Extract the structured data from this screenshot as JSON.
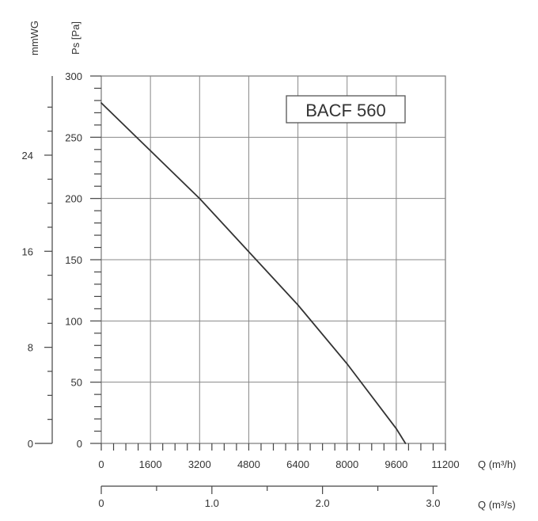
{
  "chart_data": {
    "type": "line",
    "title": "BACF 560",
    "y_label_primary": "Ps [Pa]",
    "y_label_secondary": "mmWG",
    "x_label_primary": "Q (m³/h)",
    "x_label_secondary": "Q (m³/s)",
    "xlim": [
      0,
      11200
    ],
    "ylim": [
      0,
      300
    ],
    "grid": true,
    "x_ticks": [
      "0",
      "1600",
      "3200",
      "4800",
      "6400",
      "8000",
      "9600",
      "11200"
    ],
    "y_ticks": [
      "0",
      "50",
      "100",
      "150",
      "200",
      "250",
      "300"
    ],
    "y_ticks_secondary": [
      "0",
      "8",
      "16",
      "24"
    ],
    "x_ticks_secondary": [
      "0",
      "1.0",
      "2.0",
      "3.0"
    ],
    "series": [
      {
        "x": [
          0,
          3200,
          6400,
          8000,
          9600,
          9900
        ],
        "y": [
          278,
          200,
          113,
          65,
          12,
          0
        ]
      }
    ]
  }
}
